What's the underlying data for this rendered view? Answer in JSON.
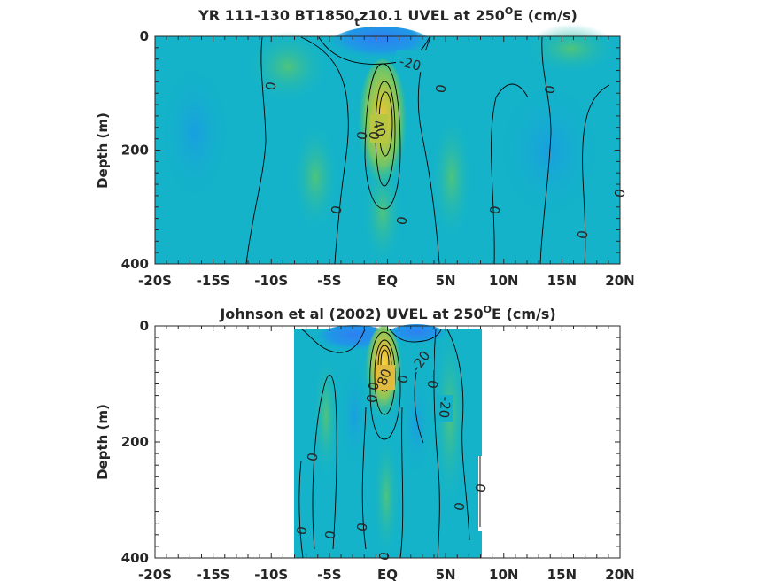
{
  "figure": {
    "colors": {
      "background": "#14b3c9",
      "deep_blue": "#2f7ff2",
      "mid_blue": "#1d9ee3",
      "green": "#2fbf8f",
      "lime": "#8bcc52",
      "yellow": "#e7c43a",
      "contour": "#000000",
      "axis": "#262626"
    }
  },
  "chart_data": [
    {
      "type": "heatmap",
      "title_main": "YR 111-130 BT1850",
      "title_sub": "t",
      "title_rest": "z10.1 UVEL at 250",
      "title_sup": "O",
      "title_end": "E (cm/s)",
      "xlabel": "",
      "ylabel": "Depth (m)",
      "xlim": [
        -20,
        20
      ],
      "ylim": [
        400,
        0
      ],
      "xticks": [
        -20,
        -15,
        -10,
        -5,
        0,
        5,
        10,
        15,
        20
      ],
      "xtick_labels": [
        "-20S",
        "-15S",
        "-10S",
        "-5S",
        "EQ",
        "5N",
        "10N",
        "15N",
        "20N"
      ],
      "yticks": [
        0,
        200,
        400
      ],
      "ytick_labels": [
        "0",
        "200",
        "400"
      ],
      "data_extent_x": [
        -20,
        20
      ],
      "data_extent_y": [
        0,
        390
      ],
      "features": [
        {
          "kind": "westward-surface-current",
          "lat": 1.5,
          "depth": 20,
          "value": -20
        },
        {
          "kind": "equatorial-undercurrent-core",
          "lat": 0,
          "depth": 140,
          "value": 40
        }
      ],
      "contour_labels": [
        {
          "text": "-20",
          "lat": 2.3,
          "depth": 48
        },
        {
          "text": "40",
          "lat": -0.8,
          "depth": 150
        },
        {
          "text": "0",
          "lat": -10,
          "depth": 87
        },
        {
          "text": "0",
          "lat": 4.7,
          "depth": 92
        },
        {
          "text": "0",
          "lat": 13.9,
          "depth": 95
        },
        {
          "text": "0",
          "lat": -2,
          "depth": 170
        },
        {
          "text": "0",
          "lat": -0.9,
          "depth": 168
        },
        {
          "text": "0",
          "lat": 20,
          "depth": 270
        },
        {
          "text": "0",
          "lat": -4.2,
          "depth": 298
        },
        {
          "text": "0",
          "lat": 1.4,
          "depth": 318
        },
        {
          "text": "0",
          "lat": 9.3,
          "depth": 298
        },
        {
          "text": "0",
          "lat": 16.8,
          "depth": 338
        }
      ]
    },
    {
      "type": "heatmap",
      "title_main": "Johnson et al (2002) UVEL at 250",
      "title_sup": "O",
      "title_end": "E (cm/s)",
      "xlabel": "",
      "ylabel": "Depth (m)",
      "xlim": [
        -20,
        20
      ],
      "ylim": [
        400,
        0
      ],
      "xticks": [
        -20,
        -15,
        -10,
        -5,
        0,
        5,
        10,
        15,
        20
      ],
      "xtick_labels": [
        "-20S",
        "-15S",
        "-10S",
        "-5S",
        "EQ",
        "5N",
        "10N",
        "15N",
        "20N"
      ],
      "yticks": [
        0,
        200,
        400
      ],
      "ytick_labels": [
        "0",
        "200",
        "400"
      ],
      "data_extent_x": [
        -8,
        8.2
      ],
      "data_extent_y": [
        5,
        400
      ],
      "features": [
        {
          "kind": "westward-surface-current",
          "lat": 2,
          "depth": 15,
          "value": -20
        },
        {
          "kind": "equatorial-undercurrent-core",
          "lat": -0.2,
          "depth": 80,
          "value": 80
        }
      ],
      "contour_labels": [
        {
          "text": "-20",
          "lat": 3,
          "depth": 62
        },
        {
          "text": "-20",
          "lat": 5,
          "depth": 140
        },
        {
          "text": "80",
          "lat": -0.3,
          "depth": 88
        },
        {
          "text": "0",
          "lat": 1.5,
          "depth": 90
        },
        {
          "text": "0",
          "lat": 4,
          "depth": 100
        },
        {
          "text": "0",
          "lat": -1,
          "depth": 110
        },
        {
          "text": "0",
          "lat": -1.3,
          "depth": 125
        },
        {
          "text": "0",
          "lat": -6.5,
          "depth": 225
        },
        {
          "text": "0",
          "lat": 8.2,
          "depth": 275
        },
        {
          "text": "0",
          "lat": 6.3,
          "depth": 310
        },
        {
          "text": "0",
          "lat": -7.2,
          "depth": 350
        },
        {
          "text": "0",
          "lat": -2,
          "depth": 345
        },
        {
          "text": "0",
          "lat": -4.8,
          "depth": 358
        },
        {
          "text": "0",
          "lat": 0,
          "depth": 396
        }
      ]
    }
  ]
}
